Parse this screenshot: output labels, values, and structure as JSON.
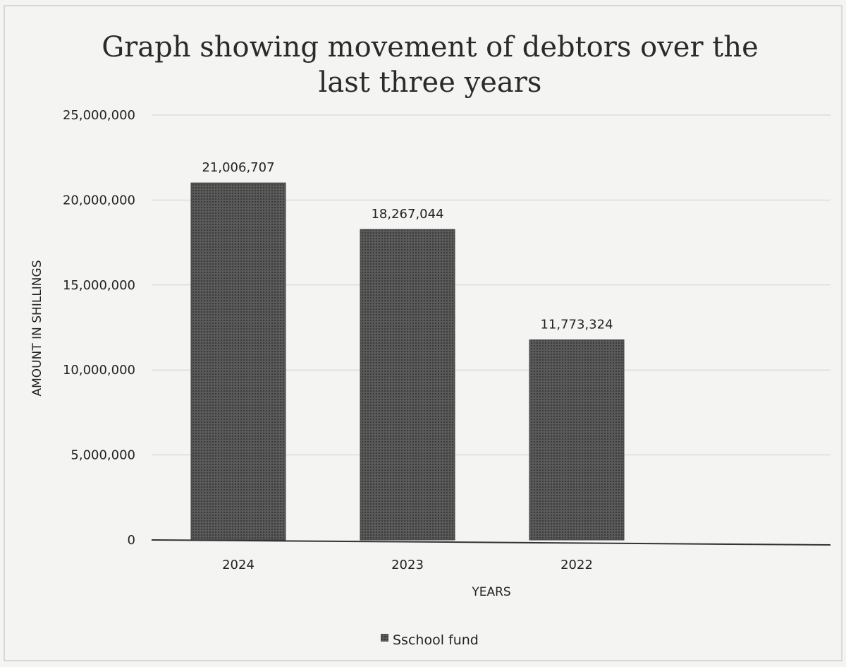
{
  "chart_data": {
    "type": "bar",
    "title_lines": [
      "Graph showing movement of debtors over the",
      "last three years"
    ],
    "xlabel": "YEARS",
    "ylabel": "AMOUNT IN SHILLINGS",
    "categories": [
      "2024",
      "2023",
      "2022"
    ],
    "series": [
      {
        "name": "Sschool fund",
        "values": [
          21006707,
          18267044,
          11773324
        ]
      }
    ],
    "data_labels": [
      "21,006,707",
      "18,267,044",
      "11,773,324"
    ],
    "ylim": [
      0,
      25000000
    ],
    "yticks": [
      0,
      5000000,
      10000000,
      15000000,
      20000000,
      25000000
    ],
    "ytick_labels": [
      "0",
      "5,000,000",
      "10,000,000",
      "15,000,000",
      "20,000,000",
      "25,000,000"
    ],
    "grid": true,
    "legend_position": "bottom",
    "bar_color": "#4a4a4a"
  }
}
